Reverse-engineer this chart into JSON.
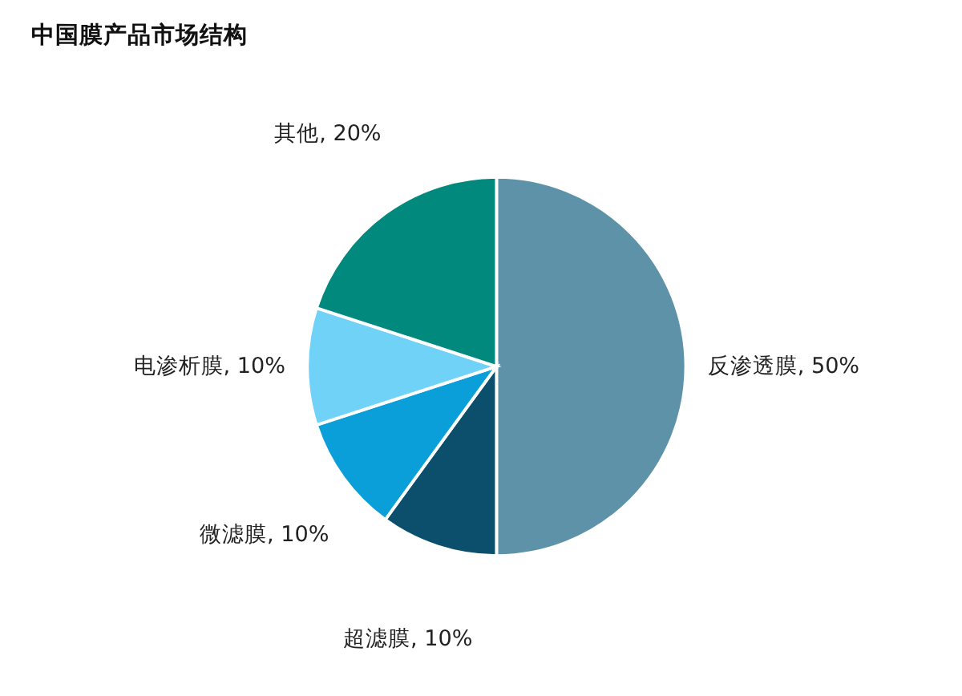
{
  "chart_data": {
    "type": "pie",
    "title": "中国膜产品市场结构",
    "categories": [
      "反渗透膜",
      "超滤膜",
      "微滤膜",
      "电渗析膜",
      "其他"
    ],
    "values": [
      50,
      10,
      10,
      10,
      20
    ],
    "value_labels": [
      "50%",
      "10%",
      "10%",
      "10%",
      "20%"
    ],
    "colors": [
      "#5e92a8",
      "#0b4f6c",
      "#0a9fd8",
      "#6fd2f6",
      "#00897c"
    ],
    "legend": false
  }
}
